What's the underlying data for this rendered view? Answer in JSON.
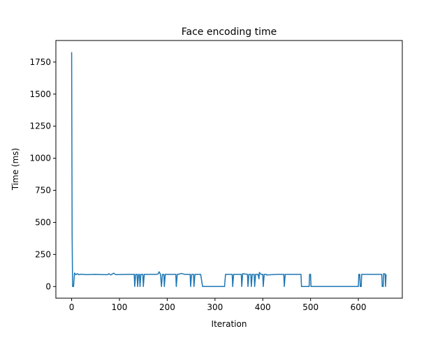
{
  "chart_data": {
    "type": "line",
    "title": "Face encoding time",
    "x_label": "Iteration",
    "y_label": "Time (ms)",
    "series": [
      {
        "color": "#1f77b4",
        "x": [
          0,
          1,
          2,
          4,
          6,
          9,
          12,
          15,
          20,
          30,
          50,
          75,
          78,
          82,
          88,
          92,
          120,
          131,
          132,
          134,
          137,
          138,
          140,
          142,
          143,
          145,
          149,
          150,
          152,
          178,
          181,
          183,
          186,
          188,
          190,
          193,
          194,
          196,
          200,
          218,
          219,
          221,
          225,
          230,
          236,
          248,
          249,
          251,
          255,
          256,
          258,
          270,
          274,
          320,
          322,
          336,
          337,
          339,
          355,
          356,
          358,
          368,
          369,
          371,
          375,
          376,
          378,
          382,
          383,
          385,
          390,
          392,
          393,
          396,
          400,
          401,
          403,
          407,
          408,
          430,
          444,
          445,
          447,
          480,
          481,
          497,
          498,
          500,
          501,
          600,
          601,
          603,
          604,
          606,
          607,
          622,
          649,
          650,
          652,
          653,
          656,
          657,
          658
        ],
        "values": [
          1827,
          400,
          0,
          0,
          105,
          92,
          100,
          92,
          96,
          93,
          95,
          92,
          100,
          90,
          104,
          93,
          95,
          95,
          0,
          95,
          95,
          0,
          95,
          95,
          0,
          95,
          95,
          0,
          95,
          95,
          98,
          115,
          95,
          0,
          95,
          95,
          0,
          95,
          95,
          95,
          0,
          95,
          97,
          102,
          95,
          95,
          0,
          95,
          95,
          0,
          95,
          95,
          0,
          0,
          95,
          95,
          0,
          95,
          95,
          0,
          100,
          95,
          0,
          95,
          95,
          0,
          95,
          95,
          0,
          95,
          95,
          60,
          110,
          95,
          95,
          0,
          95,
          95,
          90,
          95,
          95,
          0,
          95,
          95,
          0,
          0,
          95,
          95,
          0,
          0,
          95,
          95,
          0,
          0,
          95,
          95,
          95,
          0,
          0,
          100,
          98,
          0,
          95
        ]
      }
    ],
    "xlim": [
      -33,
      692
    ],
    "ylim": [
      -91,
      1918
    ],
    "xticks": [
      0,
      100,
      200,
      300,
      400,
      500,
      600
    ],
    "yticks": [
      0,
      250,
      500,
      750,
      1000,
      1250,
      1500,
      1750
    ]
  }
}
